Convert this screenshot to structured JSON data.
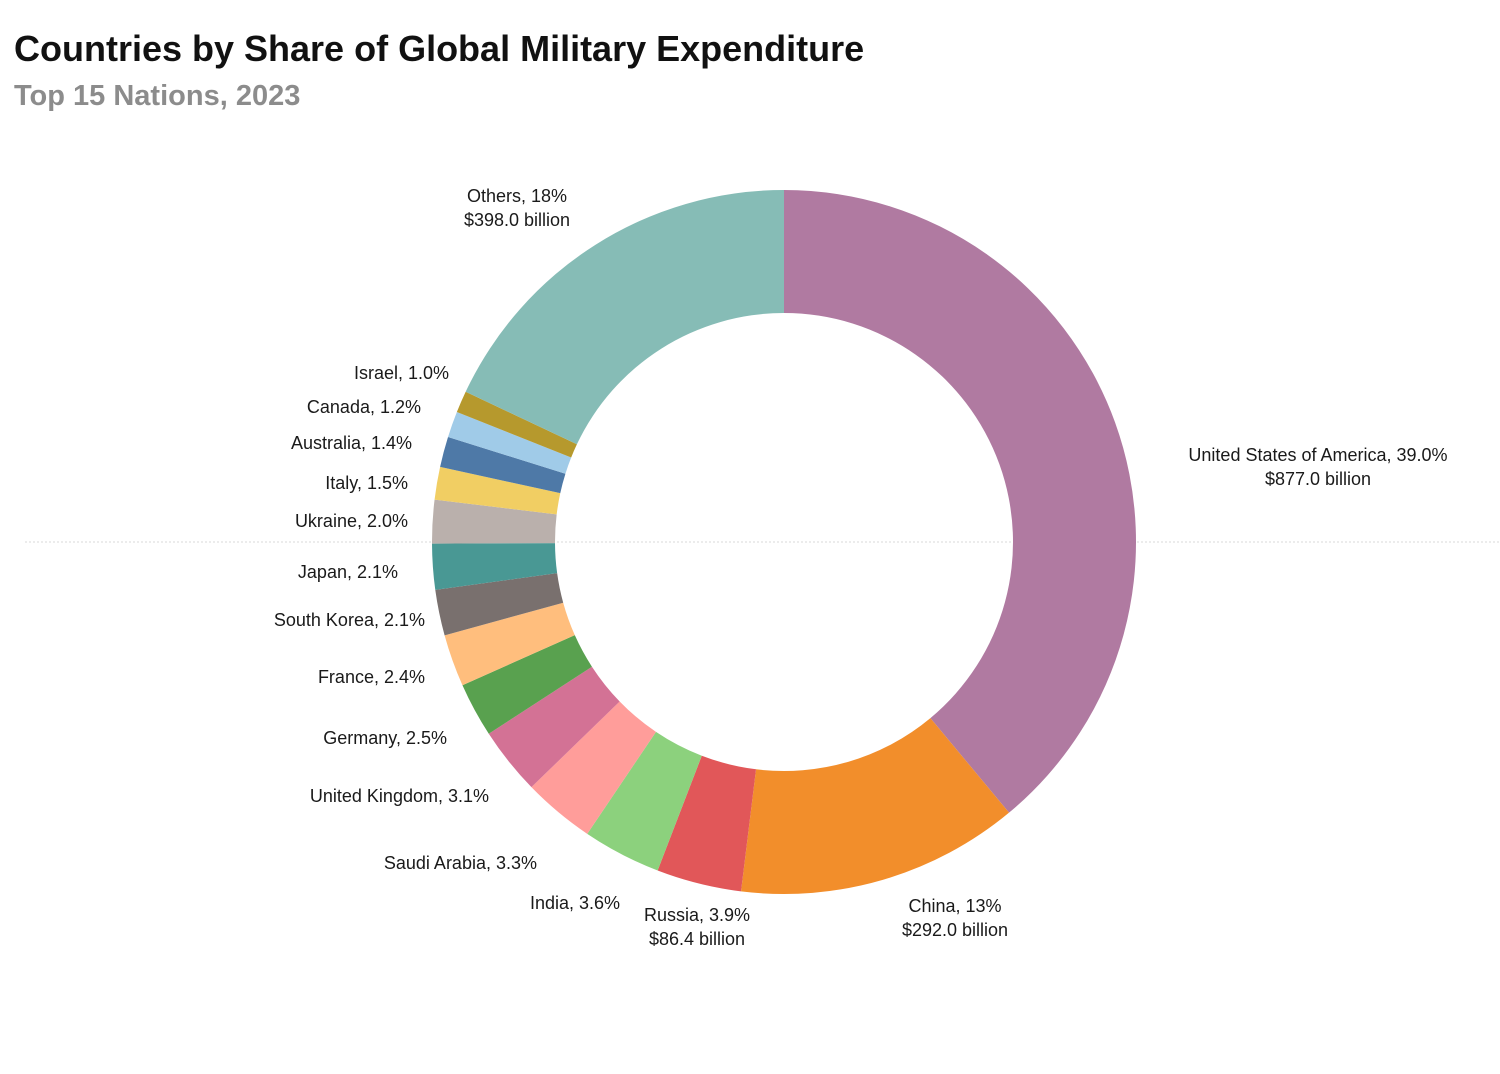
{
  "chart_data": {
    "type": "pie",
    "title": "Countries by Share of Global Military Expenditure",
    "subtitle": "Top 15 Nations, 2023",
    "slices": [
      {
        "name": "United States of America",
        "share": 39.0,
        "share_label": "39.0%",
        "value_label": "$877.0 billion",
        "color": "#b07aa1"
      },
      {
        "name": "China",
        "share": 13,
        "share_label": "13%",
        "value_label": "$292.0 billion",
        "color": "#f28e2b"
      },
      {
        "name": "Russia",
        "share": 3.9,
        "share_label": "3.9%",
        "value_label": "$86.4 billion",
        "color": "#e15759"
      },
      {
        "name": "India",
        "share": 3.6,
        "share_label": "3.6%",
        "value_label": "",
        "color": "#8cd17d"
      },
      {
        "name": "Saudi Arabia",
        "share": 3.3,
        "share_label": "3.3%",
        "value_label": "",
        "color": "#ff9d9a"
      },
      {
        "name": "United Kingdom",
        "share": 3.1,
        "share_label": "3.1%",
        "value_label": "",
        "color": "#d37295"
      },
      {
        "name": "Germany",
        "share": 2.5,
        "share_label": "2.5%",
        "value_label": "",
        "color": "#59a14f"
      },
      {
        "name": "France",
        "share": 2.4,
        "share_label": "2.4%",
        "value_label": "",
        "color": "#ffbe7d"
      },
      {
        "name": "South Korea",
        "share": 2.1,
        "share_label": "2.1%",
        "value_label": "",
        "color": "#79706e"
      },
      {
        "name": "Japan",
        "share": 2.1,
        "share_label": "2.1%",
        "value_label": "",
        "color": "#499894"
      },
      {
        "name": "Ukraine",
        "share": 2.0,
        "share_label": "2.0%",
        "value_label": "",
        "color": "#bab0ac"
      },
      {
        "name": "Italy",
        "share": 1.5,
        "share_label": "1.5%",
        "value_label": "",
        "color": "#f1ce63"
      },
      {
        "name": "Australia",
        "share": 1.4,
        "share_label": "1.4%",
        "value_label": "",
        "color": "#4e79a7"
      },
      {
        "name": "Canada",
        "share": 1.2,
        "share_label": "1.2%",
        "value_label": "",
        "color": "#a0cbe8"
      },
      {
        "name": "Israel",
        "share": 1.0,
        "share_label": "1.0%",
        "value_label": "",
        "color": "#b6992d"
      },
      {
        "name": "Others",
        "share": 18,
        "share_label": "18%",
        "value_label": "$398.0 billion",
        "color": "#86bcb6"
      }
    ],
    "legend": "none",
    "grid": false
  }
}
